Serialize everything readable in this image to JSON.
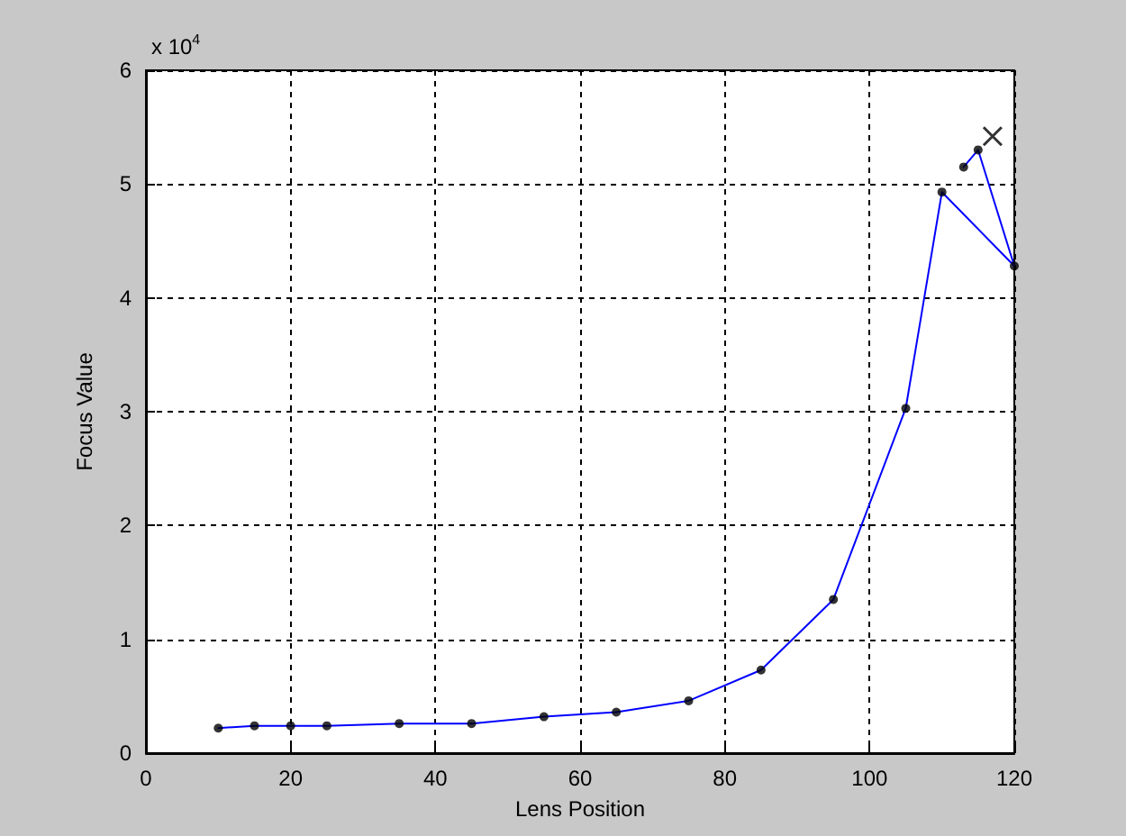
{
  "chart_data": {
    "type": "line",
    "xlabel": "Lens Position",
    "ylabel": "Focus Value",
    "annotations": [
      "x 10$^{4}$"
    ],
    "xlim": [
      0,
      120
    ],
    "xticks": [
      0,
      20,
      40,
      60,
      80,
      100,
      120
    ],
    "ylim": [
      0,
      6
    ],
    "yticks": [
      0,
      1,
      2,
      3,
      4,
      5,
      6
    ],
    "grid": true,
    "series": [
      {
        "type": "line",
        "color": "#0000ff",
        "marker": "none",
        "line_style": "solid",
        "x": [
          10,
          15,
          20,
          25,
          35,
          45,
          55,
          65,
          75,
          85,
          95,
          105,
          110,
          120,
          115,
          113
        ],
        "values": [
          0.22,
          0.24,
          0.24,
          0.24,
          0.26,
          0.26,
          0.32,
          0.36,
          0.46,
          0.73,
          1.35,
          3.03,
          4.93,
          4.28,
          5.3,
          5.15
        ]
      },
      {
        "type": "scatter",
        "color": "#000000",
        "marker": "circle",
        "x": [
          10,
          15,
          20,
          25,
          35,
          45,
          55,
          65,
          75,
          85,
          95,
          105,
          110,
          120,
          115,
          113
        ],
        "values": [
          0.22,
          0.24,
          0.24,
          0.24,
          0.26,
          0.26,
          0.32,
          0.36,
          0.46,
          0.73,
          1.35,
          3.03,
          4.93,
          4.28,
          5.3,
          5.15
        ]
      },
      {
        "type": "scatter",
        "color": "#000000",
        "marker": "cross",
        "x": [
          117
        ],
        "values": [
          5.42
        ]
      }
    ]
  }
}
